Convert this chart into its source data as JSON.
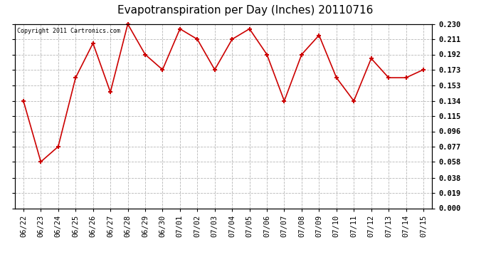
{
  "title": "Evapotranspiration per Day (Inches) 20110716",
  "copyright_text": "Copyright 2011 Cartronics.com",
  "dates": [
    "06/22",
    "06/23",
    "06/24",
    "06/25",
    "06/26",
    "06/27",
    "06/28",
    "06/29",
    "06/30",
    "07/01",
    "07/02",
    "07/03",
    "07/04",
    "07/05",
    "07/06",
    "07/07",
    "07/08",
    "07/09",
    "07/10",
    "07/11",
    "07/12",
    "07/13",
    "07/14",
    "07/15"
  ],
  "values": [
    0.134,
    0.058,
    0.077,
    0.163,
    0.206,
    0.145,
    0.23,
    0.192,
    0.173,
    0.224,
    0.211,
    0.173,
    0.211,
    0.224,
    0.192,
    0.134,
    0.192,
    0.216,
    0.163,
    0.134,
    0.187,
    0.163,
    0.163,
    0.173
  ],
  "line_color": "#cc0000",
  "marker": "+",
  "marker_size": 5,
  "ylim": [
    0.0,
    0.23
  ],
  "yticks": [
    0.0,
    0.019,
    0.038,
    0.058,
    0.077,
    0.096,
    0.115,
    0.134,
    0.153,
    0.173,
    0.192,
    0.211,
    0.23
  ],
  "background_color": "#ffffff",
  "plot_bg_color": "#ffffff",
  "grid_color": "#aaaaaa",
  "title_fontsize": 11,
  "copyright_fontsize": 6,
  "tick_fontsize": 7.5,
  "title_font": "DejaVu Sans"
}
